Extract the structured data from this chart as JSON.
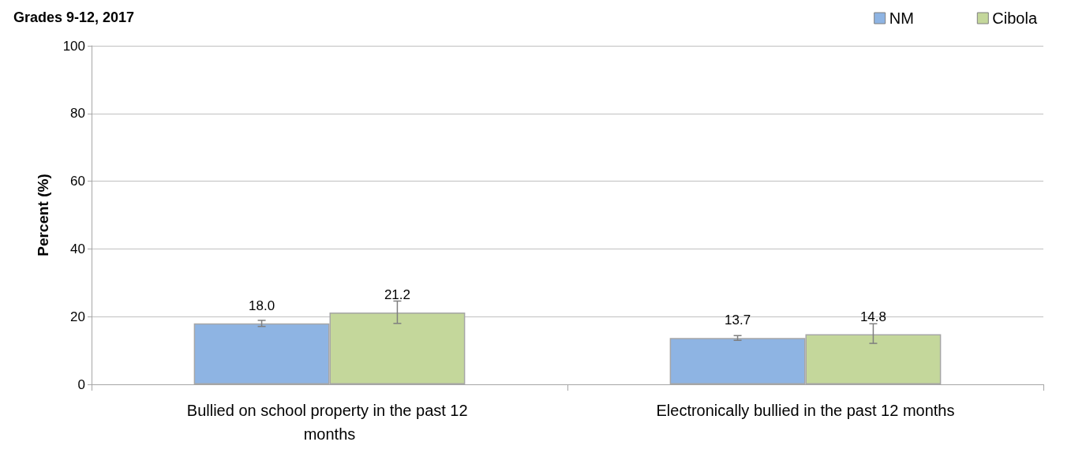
{
  "chart_data": {
    "type": "bar",
    "title": "Grades 9-12, 2017",
    "ylabel": "Percent (%)",
    "categories": [
      "Bullied on school property in the past 12 months",
      "Electronically bullied in the past 12 months"
    ],
    "series": [
      {
        "name": "NM",
        "color": "#8eb4e3",
        "values": [
          18.0,
          13.7
        ],
        "value_labels": [
          "18.0",
          "13.7"
        ],
        "errors": [
          [
            17.1,
            18.9
          ],
          [
            13.0,
            14.4
          ]
        ]
      },
      {
        "name": "Cibola",
        "color": "#c4d79b",
        "values": [
          21.2,
          14.8
        ],
        "value_labels": [
          "21.2",
          "14.8"
        ],
        "errors": [
          [
            18.0,
            24.6
          ],
          [
            12.1,
            17.9
          ]
        ]
      }
    ],
    "ylim": [
      0,
      100
    ],
    "yticks": [
      0,
      20,
      40,
      60,
      80,
      100
    ],
    "grid": "y",
    "legend": "top right"
  }
}
